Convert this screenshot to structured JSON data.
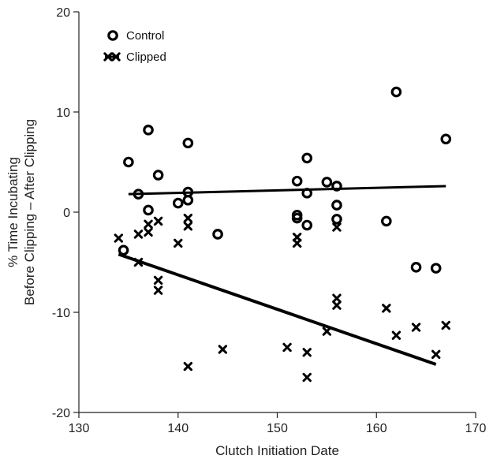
{
  "chart_data": {
    "type": "scatter",
    "xlabel": "Clutch Initiation Date",
    "ylabel": [
      "% Time Incubating",
      "Before Clipping – After Clipping"
    ],
    "xlim": [
      130,
      170
    ],
    "ylim": [
      -20,
      20
    ],
    "xticks": [
      130,
      140,
      150,
      160,
      170
    ],
    "yticks": [
      -20,
      -10,
      0,
      10,
      20
    ],
    "grid": false,
    "legend_position": "top-left",
    "legend": [
      "Control",
      "Clipped"
    ],
    "colors": {
      "marks": "#000000",
      "axis": "#222222"
    },
    "series": [
      {
        "name": "Control",
        "marker": "open-circle",
        "points": [
          [
            134.5,
            -3.8
          ],
          [
            135.0,
            5.0
          ],
          [
            136.0,
            1.8
          ],
          [
            137.0,
            8.2
          ],
          [
            137.0,
            0.2
          ],
          [
            138.0,
            3.7
          ],
          [
            140.0,
            0.9
          ],
          [
            141.0,
            6.9
          ],
          [
            141.0,
            2.0
          ],
          [
            141.0,
            1.2
          ],
          [
            144.0,
            -2.2
          ],
          [
            152.0,
            3.1
          ],
          [
            152.0,
            -0.3
          ],
          [
            152.0,
            -0.6
          ],
          [
            153.0,
            5.4
          ],
          [
            153.0,
            1.9
          ],
          [
            153.0,
            -1.3
          ],
          [
            155.0,
            3.0
          ],
          [
            156.0,
            2.6
          ],
          [
            156.0,
            0.7
          ],
          [
            156.0,
            -0.7
          ],
          [
            161.0,
            -0.9
          ],
          [
            162.0,
            12.0
          ],
          [
            164.0,
            -5.5
          ],
          [
            166.0,
            -5.6
          ],
          [
            167.0,
            7.3
          ]
        ],
        "trendline": [
          [
            135.0,
            1.8
          ],
          [
            167.0,
            2.6
          ]
        ]
      },
      {
        "name": "Clipped",
        "marker": "x",
        "points": [
          [
            134.0,
            -2.6
          ],
          [
            136.0,
            -2.2
          ],
          [
            136.0,
            -5.0
          ],
          [
            137.0,
            -1.2
          ],
          [
            137.0,
            -2.0
          ],
          [
            138.0,
            -6.8
          ],
          [
            138.0,
            -7.8
          ],
          [
            138.0,
            -0.9
          ],
          [
            140.0,
            -3.1
          ],
          [
            141.0,
            -0.6
          ],
          [
            141.0,
            -1.4
          ],
          [
            141.0,
            -15.4
          ],
          [
            144.5,
            -13.7
          ],
          [
            151.0,
            -13.5
          ],
          [
            152.0,
            -2.5
          ],
          [
            152.0,
            -3.1
          ],
          [
            153.0,
            -14.0
          ],
          [
            153.0,
            -16.5
          ],
          [
            155.0,
            -11.9
          ],
          [
            156.0,
            -1.5
          ],
          [
            156.0,
            -8.6
          ],
          [
            156.0,
            -9.3
          ],
          [
            161.0,
            -9.6
          ],
          [
            162.0,
            -12.3
          ],
          [
            164.0,
            -11.5
          ],
          [
            166.0,
            -14.2
          ],
          [
            167.0,
            -11.3
          ]
        ],
        "trendline": [
          [
            134.0,
            -4.2
          ],
          [
            166.0,
            -15.2
          ]
        ]
      }
    ]
  }
}
